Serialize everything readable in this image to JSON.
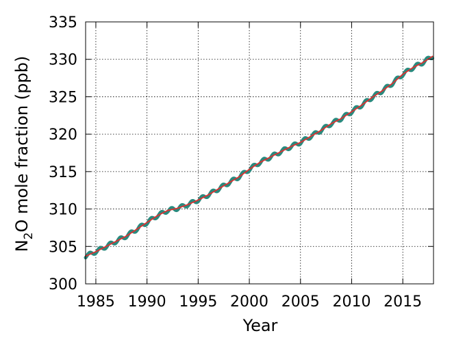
{
  "chart_data": {
    "type": "line",
    "xlabel": "Year",
    "ylabel": {
      "prefix": "N",
      "subscript": "2",
      "suffix": "O mole fraction (ppb)"
    },
    "xlim": [
      1984,
      2018
    ],
    "ylim": [
      300,
      335
    ],
    "xticks": [
      1985,
      1990,
      1995,
      2000,
      2005,
      2010,
      2015
    ],
    "yticks": [
      300,
      305,
      310,
      315,
      320,
      325,
      330,
      335
    ],
    "grid": true,
    "series": [
      {
        "role": "monthly",
        "color": "#2a8a7e",
        "x": [
          1984.0,
          1985.0,
          1986.0,
          1987.0,
          1988.0,
          1989.0,
          1990.0,
          1991.0,
          1992.0,
          1993.0,
          1994.0,
          1995.0,
          1996.0,
          1997.0,
          1998.0,
          1999.0,
          2000.0,
          2001.0,
          2002.0,
          2003.0,
          2004.0,
          2005.0,
          2006.0,
          2007.0,
          2008.0,
          2009.0,
          2010.0,
          2011.0,
          2012.0,
          2013.0,
          2014.0,
          2015.0,
          2016.0,
          2017.0,
          2017.9
        ],
        "y": [
          303.7,
          304.3,
          305.0,
          305.7,
          306.4,
          307.3,
          308.2,
          309.1,
          309.8,
          310.1,
          310.6,
          311.2,
          311.9,
          312.7,
          313.5,
          314.3,
          315.3,
          316.2,
          316.9,
          317.6,
          318.3,
          318.9,
          319.7,
          320.5,
          321.4,
          322.1,
          323.0,
          323.9,
          324.9,
          325.8,
          326.8,
          328.0,
          328.9,
          329.6,
          330.4
        ],
        "seasonal_amplitude": 0.25
      },
      {
        "role": "trend",
        "color": "#e03030",
        "x": [
          1984.0,
          1985.0,
          1986.0,
          1987.0,
          1988.0,
          1989.0,
          1990.0,
          1991.0,
          1992.0,
          1993.0,
          1994.0,
          1995.0,
          1996.0,
          1997.0,
          1998.0,
          1999.0,
          2000.0,
          2001.0,
          2002.0,
          2003.0,
          2004.0,
          2005.0,
          2006.0,
          2007.0,
          2008.0,
          2009.0,
          2010.0,
          2011.0,
          2012.0,
          2013.0,
          2014.0,
          2015.0,
          2016.0,
          2017.0,
          2017.9
        ],
        "y": [
          303.7,
          304.3,
          305.0,
          305.7,
          306.4,
          307.3,
          308.2,
          309.1,
          309.8,
          310.1,
          310.6,
          311.2,
          311.9,
          312.7,
          313.5,
          314.3,
          315.3,
          316.2,
          316.9,
          317.6,
          318.3,
          318.9,
          319.7,
          320.5,
          321.4,
          322.1,
          323.0,
          323.9,
          324.9,
          325.8,
          326.8,
          328.0,
          328.9,
          329.6,
          330.4
        ]
      }
    ]
  }
}
